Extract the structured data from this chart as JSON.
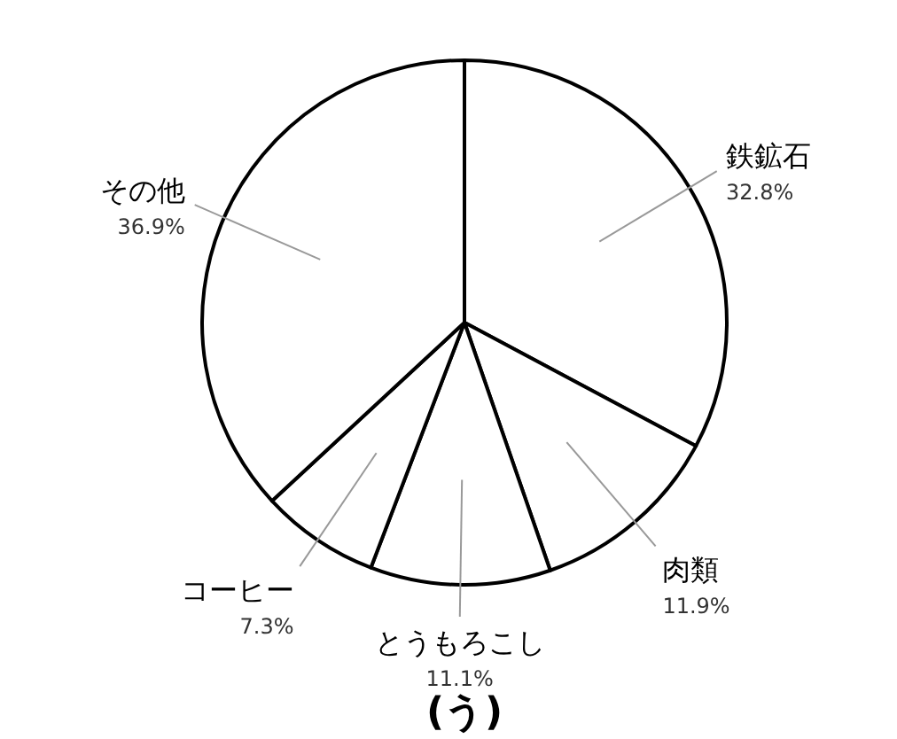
{
  "chart_data": {
    "type": "pie",
    "categories": [
      "鉄鉱石",
      "肉類",
      "とうもろこし",
      "コーヒー",
      "その他"
    ],
    "values": [
      32.8,
      11.9,
      11.1,
      7.3,
      36.9
    ],
    "value_labels": [
      "32.8%",
      "11.9%",
      "11.1%",
      "7.3%",
      "36.9%"
    ],
    "colors": [
      "#ffffff",
      "#ffffff",
      "#ffffff",
      "#ffffff",
      "#ffffff"
    ],
    "annotations": [
      "(う)"
    ],
    "legend": false
  }
}
